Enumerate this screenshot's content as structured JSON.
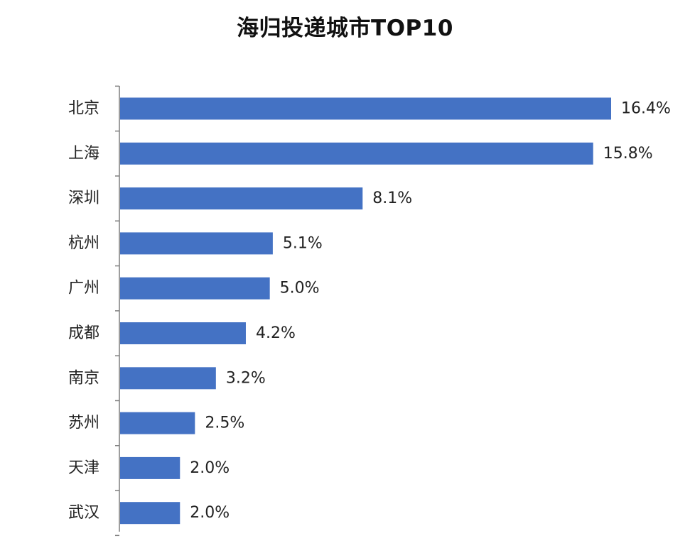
{
  "chart_data": {
    "type": "bar",
    "orientation": "horizontal",
    "title": "海归投递城市TOP10",
    "xlabel": "",
    "ylabel": "",
    "categories": [
      "北京",
      "上海",
      "深圳",
      "杭州",
      "广州",
      "成都",
      "南京",
      "苏州",
      "天津",
      "武汉"
    ],
    "values": [
      16.4,
      15.8,
      8.1,
      5.1,
      5.0,
      4.2,
      3.2,
      2.5,
      2.0,
      2.0
    ],
    "data_labels": [
      "16.4%",
      "15.8%",
      "8.1%",
      "5.1%",
      "5.0%",
      "4.2%",
      "3.2%",
      "2.5%",
      "2.0%",
      "2.0%"
    ],
    "xlim": [
      0,
      16.4
    ],
    "bar_color": "#4472C4",
    "axis_color": "#7f7f7f",
    "grid": false,
    "legend": "none"
  }
}
